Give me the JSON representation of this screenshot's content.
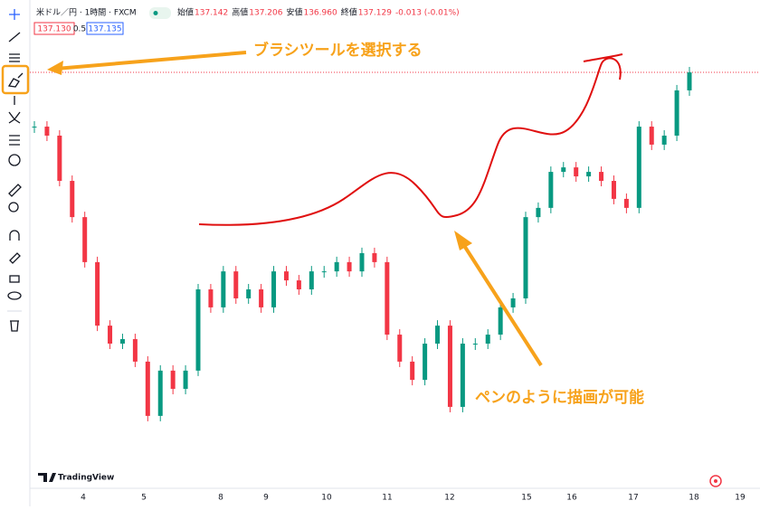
{
  "header": {
    "symbol": "米ドル／円 · 1時間 · FXCM",
    "stats": [
      {
        "label": "始値",
        "value": "137.142"
      },
      {
        "label": "高値",
        "value": "137.206"
      },
      {
        "label": "安値",
        "value": "136.960"
      },
      {
        "label": "終値",
        "value": "137.129"
      }
    ],
    "change": "-0.013 (-0.01%)",
    "bid": "137.130",
    "spread": "0.5",
    "ask": "137.135"
  },
  "chart_data": {
    "type": "candlestick",
    "closes": [
      136.902,
      136.866,
      136.685,
      136.54,
      136.36,
      136.106,
      136.034,
      136.052,
      135.962,
      135.745,
      135.926,
      135.853,
      135.926,
      136.251,
      136.179,
      136.323,
      136.215,
      136.251,
      136.179,
      136.323,
      136.287,
      136.251,
      136.323,
      136.323,
      136.36,
      136.323,
      136.396,
      136.36,
      136.07,
      135.962,
      135.889,
      136.034,
      136.106,
      135.781,
      136.034,
      136.034,
      136.07,
      136.179,
      136.215,
      136.54,
      136.577,
      136.721,
      136.739,
      136.703,
      136.721,
      136.685,
      136.613,
      136.577,
      136.902,
      136.83,
      136.866,
      137.047,
      137.119
    ],
    "ylim": [
      135.6,
      137.3
    ],
    "x_labels": [
      "4",
      "5",
      "8",
      "9",
      "10",
      "11",
      "12",
      "15",
      "16",
      "17",
      "18",
      "19"
    ]
  },
  "annotations": {
    "tool": "ブラシツールを選択する",
    "pen": "ペンのように描画が可能"
  },
  "logo": "TradingView"
}
